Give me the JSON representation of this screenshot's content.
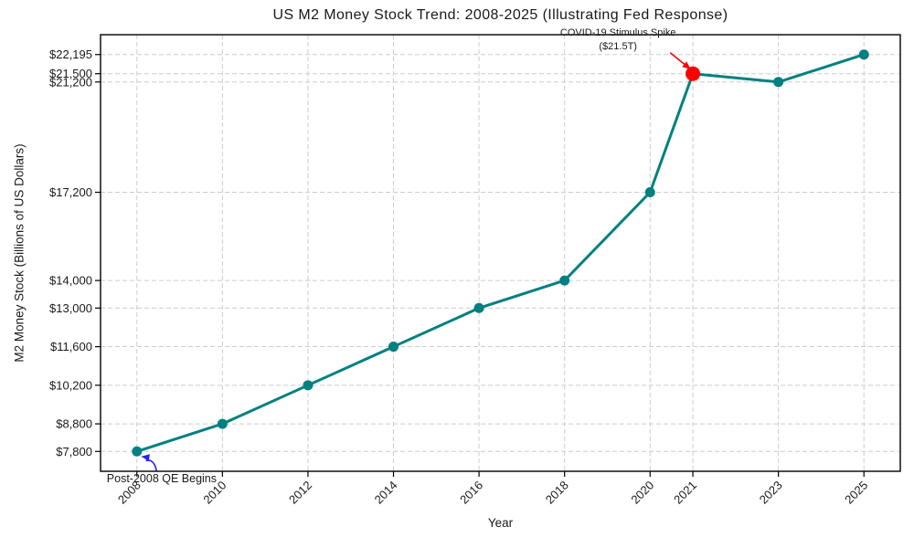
{
  "chart_data": {
    "type": "line",
    "title": "US M2 Money Stock Trend: 2008-2025 (Illustrating Fed Response)",
    "xlabel": "Year",
    "ylabel": "M2 Money Stock (Billions of US Dollars)",
    "x": [
      2008,
      2010,
      2012,
      2014,
      2016,
      2018,
      2020,
      2021,
      2023,
      2025
    ],
    "values": [
      7800,
      8800,
      10200,
      11600,
      13000,
      14000,
      17200,
      21500,
      21200,
      22195
    ],
    "xlim": [
      2007.15,
      2025.85
    ],
    "ylim": [
      7080,
      22915
    ],
    "grid": true,
    "legend_position": "none",
    "line_color": "#008080",
    "grid_color": "#cccccc",
    "text_color": "#1a1a1a",
    "spine_color": "#000000",
    "highlight": {
      "x": 2021,
      "value": 21500,
      "color": "#ff0000"
    },
    "xticks": [
      {
        "v": 2008,
        "label": "2008"
      },
      {
        "v": 2010,
        "label": "2010"
      },
      {
        "v": 2012,
        "label": "2012"
      },
      {
        "v": 2014,
        "label": "2014"
      },
      {
        "v": 2016,
        "label": "2016"
      },
      {
        "v": 2018,
        "label": "2018"
      },
      {
        "v": 2020,
        "label": "2020"
      },
      {
        "v": 2021,
        "label": "2021"
      },
      {
        "v": 2023,
        "label": "2023"
      },
      {
        "v": 2025,
        "label": "2025"
      }
    ],
    "yticks": [
      {
        "v": 7800,
        "label": "$7,800"
      },
      {
        "v": 8800,
        "label": "$8,800"
      },
      {
        "v": 10200,
        "label": "$10,200"
      },
      {
        "v": 11600,
        "label": "$11,600"
      },
      {
        "v": 13000,
        "label": "$13,000"
      },
      {
        "v": 14000,
        "label": "$14,000"
      },
      {
        "v": 17200,
        "label": "$17,200"
      },
      {
        "v": 21200,
        "label": "$21,200"
      },
      {
        "v": 21500,
        "label": "$21,500"
      },
      {
        "v": 22195,
        "label": "$22,195"
      }
    ],
    "annotations": [
      {
        "id": "covid-stimulus-spike",
        "lines": [
          "COVID-19 Stimulus Spike",
          "($21.5T)"
        ],
        "text_at": {
          "x": 2019.25,
          "y": 23000
        },
        "arrow_from": {
          "x": 2020.47,
          "y": 22260
        },
        "arrow_to": {
          "x": 2020.95,
          "y": 21660
        },
        "color": "#ff0000",
        "curved": false,
        "font_px": 11
      },
      {
        "id": "post-2008-qe-begins",
        "lines": [
          "Post-2008 QE Begins"
        ],
        "text_at": {
          "x": 2008.58,
          "y": 6805
        },
        "arrow_from": {
          "x": 2008.46,
          "y": 7090
        },
        "arrow_to": {
          "x": 2008.1,
          "y": 7620
        },
        "color": "#2222ff",
        "curved": true,
        "font_px": 12.5
      }
    ]
  }
}
